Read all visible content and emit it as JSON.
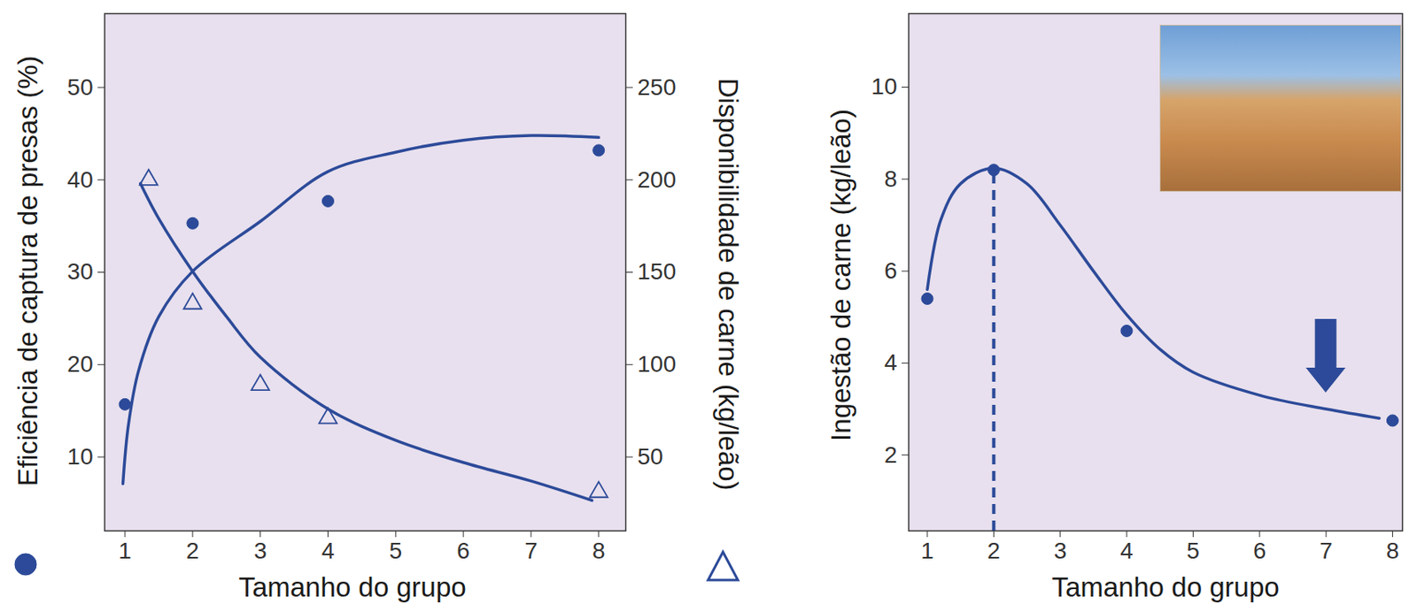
{
  "chart_data": [
    {
      "type": "line",
      "xlabel": "Tamanho do grupo",
      "ylabel": "Eficiência de captura de presas (%)",
      "y2label": "Disponibilidade de carne (kg/leão)",
      "xlim": [
        0.7,
        8.4
      ],
      "xticks": [
        1,
        2,
        3,
        4,
        5,
        6,
        7,
        8
      ],
      "ylim": [
        2,
        58
      ],
      "yticks": [
        10,
        20,
        30,
        40,
        50
      ],
      "y2lim": [
        10,
        290
      ],
      "y2ticks": [
        50,
        100,
        150,
        200,
        250
      ],
      "grid": false,
      "series": [
        {
          "type": "scatter",
          "marker": "circle",
          "color": "#2c4a99",
          "x": [
            1,
            2,
            4,
            8
          ],
          "values": [
            15.7,
            35.3,
            37.7,
            43.2
          ]
        },
        {
          "type": "line",
          "line_style": "solid",
          "color": "#2c4a99",
          "x": [
            0.97,
            1.05,
            1.2,
            1.5,
            2,
            3,
            4,
            5,
            6,
            7,
            8
          ],
          "values": [
            7.1,
            13.4,
            19.3,
            25.2,
            30.1,
            35.5,
            40.9,
            43.0,
            44.3,
            44.8,
            44.6
          ]
        },
        {
          "type": "scatter",
          "marker": "triangle-open",
          "color": "#2c4a99",
          "axis": "y2",
          "x": [
            1.35,
            2,
            3,
            4,
            8
          ],
          "values": [
            200,
            133,
            89,
            71,
            31
          ]
        },
        {
          "type": "line",
          "line_style": "solid",
          "color": "#2c4a99",
          "axis": "y2",
          "x": [
            1.23,
            1.5,
            2,
            2.5,
            3,
            4,
            5,
            6,
            7,
            7.9
          ],
          "values": [
            198,
            179,
            150.5,
            126,
            104,
            76,
            59,
            47,
            37,
            26.5
          ]
        }
      ]
    },
    {
      "type": "line",
      "xlabel": "Tamanho do grupo",
      "ylabel": "Ingestão de carne (kg/leão)",
      "xlim": [
        0.72,
        8.15
      ],
      "xticks": [
        1,
        2,
        3,
        4,
        5,
        6,
        7,
        8
      ],
      "ylim": [
        0.35,
        11.6
      ],
      "yticks": [
        2,
        4,
        6,
        8,
        10
      ],
      "grid": false,
      "series": [
        {
          "type": "scatter",
          "marker": "circle",
          "color": "#2c4a99",
          "x": [
            1,
            2,
            4,
            8
          ],
          "values": [
            5.4,
            8.2,
            4.7,
            2.75
          ]
        },
        {
          "type": "line",
          "line_style": "solid",
          "color": "#2c4a99",
          "x": [
            1,
            1.2,
            1.5,
            2,
            2.5,
            3,
            3.5,
            4,
            4.5,
            5,
            6,
            7,
            7.8
          ],
          "values": [
            5.6,
            7.1,
            7.9,
            8.24,
            7.9,
            7.0,
            6.0,
            5.05,
            4.3,
            3.8,
            3.3,
            3.0,
            2.8
          ]
        }
      ],
      "reference_line": {
        "x": 2,
        "y": 8.2,
        "line_style": "dashed",
        "color": "#2c4a99"
      },
      "arrow": {
        "x": 7,
        "y": [
          4.95,
          3.35
        ],
        "color": "#2c4a99"
      }
    }
  ]
}
